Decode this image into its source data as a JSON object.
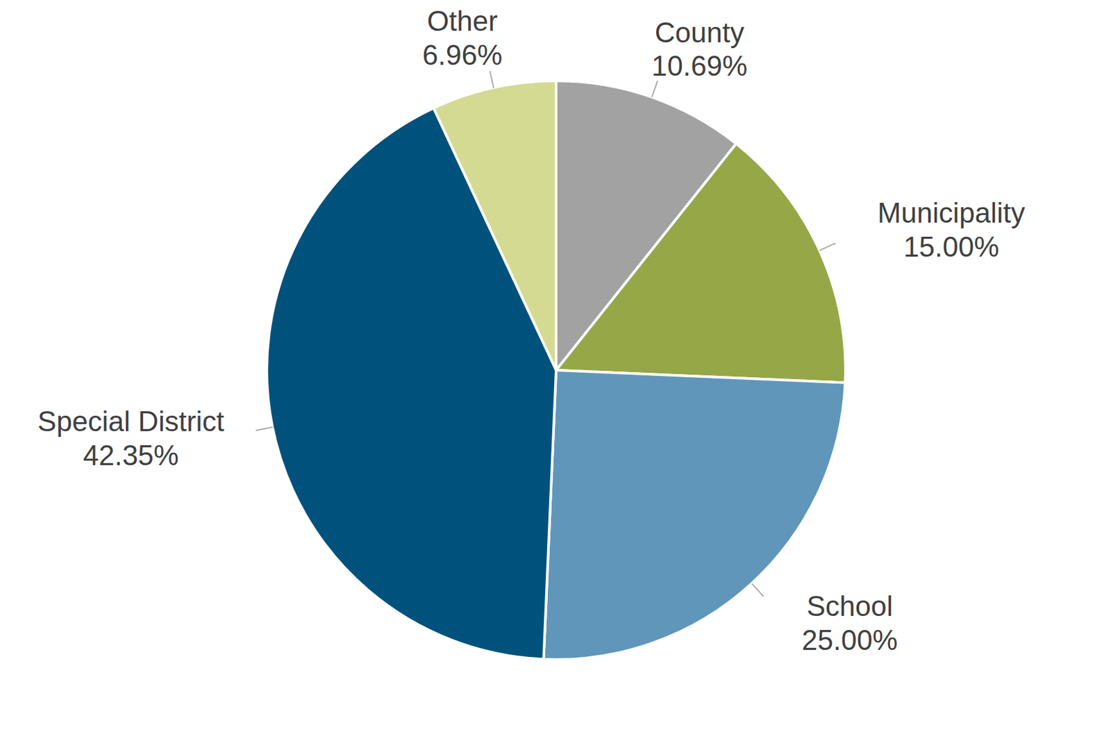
{
  "chart_data": {
    "type": "pie",
    "categories": [
      "County",
      "Municipality",
      "School",
      "Special District",
      "Other"
    ],
    "values": [
      10.69,
      15.0,
      25.0,
      42.35,
      6.96
    ],
    "value_labels": [
      "10.69%",
      "15.00%",
      "25.00%",
      "42.35%",
      "6.96%"
    ],
    "colors": [
      "#a2a2a2",
      "#95a747",
      "#6196bb",
      "#00527c",
      "#d4da91"
    ],
    "data_labels": true
  }
}
